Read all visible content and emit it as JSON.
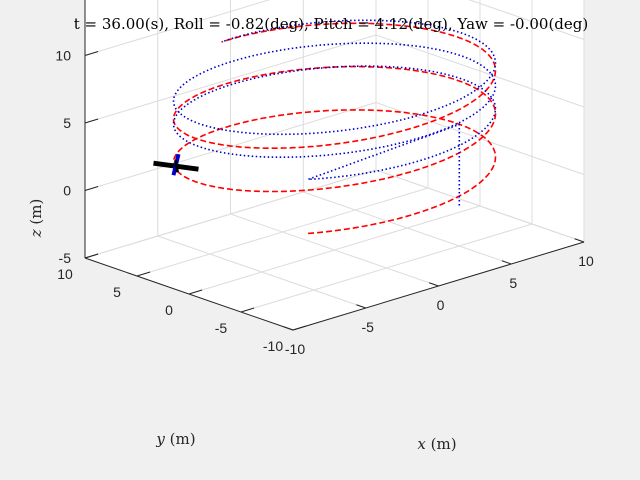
{
  "window": {
    "background_color": "#f0f0f0"
  },
  "chart_data": {
    "type": "line",
    "projection": "3d",
    "title": "t = 36.00(s), Roll = -0.82(deg), Pitch = 4.12(deg), Yaw = -0.00(deg)",
    "xlabel": "x (m)",
    "ylabel": "y (m)",
    "zlabel": "z (m)",
    "xlabel_var": "x",
    "xlabel_unit": " (m)",
    "ylabel_var": "y",
    "ylabel_unit": " (m)",
    "zlabel_var": "z",
    "zlabel_unit": " (m)",
    "xlim": [
      -10,
      10
    ],
    "ylim": [
      -10,
      10
    ],
    "zlim": [
      -5,
      15
    ],
    "xticks": [
      "-10",
      "-5",
      "0",
      "5",
      "10"
    ],
    "yticks": [
      "-10",
      "-5",
      "0",
      "5",
      "10"
    ],
    "zticks": [
      "-5",
      "0",
      "5",
      "10",
      "15"
    ],
    "grid": true,
    "axes_background": "#ffffff",
    "grid_color": "#dcdcdc",
    "axis_color": "#262626",
    "series": [
      {
        "style": "dashed",
        "color": "#ff0000",
        "shape": "helix",
        "center": [
          0,
          0
        ],
        "radius": 9,
        "z_start": 0,
        "z_end": 8.5,
        "turns": 2.65,
        "start_angle_deg": 225
      },
      {
        "style": "dotted",
        "color": "#0000cc",
        "shape": "climb_then_helix",
        "climb_start": [
          5,
          -5,
          -2
        ],
        "climb_end": [
          5,
          -5,
          4
        ],
        "center": [
          0,
          0
        ],
        "radius": 9,
        "z_start": 4,
        "z_end": 8.5,
        "turns": 2.65,
        "start_angle_deg": 225
      }
    ],
    "vehicle": {
      "type": "quadrotor",
      "position": [
        -5.5,
        7.5,
        1
      ],
      "arm_color": "#000000",
      "front_arm_color": "#0000cc"
    }
  }
}
